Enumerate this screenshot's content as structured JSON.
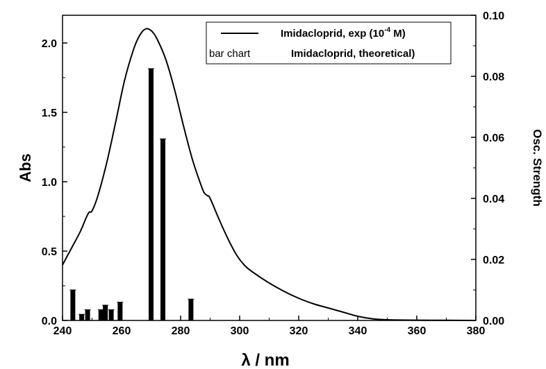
{
  "chart_data": {
    "type": "line",
    "title": "",
    "xlabel": "λ / nm",
    "ylabel": "Abs",
    "y2label": "Osc. Strength",
    "xlim": [
      240,
      380
    ],
    "ylim": [
      0,
      2.2
    ],
    "y2lim": [
      0,
      0.1
    ],
    "x_ticks": [
      "240",
      "260",
      "280",
      "300",
      "320",
      "340",
      "360",
      "380"
    ],
    "y_ticks": [
      "0.0",
      "0.5",
      "1.0",
      "1.5",
      "2.0"
    ],
    "y2_ticks": [
      "0.00",
      "0.02",
      "0.04",
      "0.06",
      "0.08",
      "0.10"
    ],
    "grid": false,
    "legend_position": "top-right",
    "legend": [
      {
        "marker": "line",
        "prefix": "",
        "text": "Imidacloprid, exp (10",
        "sup": "-4",
        "suffix": " M)"
      },
      {
        "marker": "bar",
        "prefix": "bar chart",
        "text": "Imidacloprid, theoretical)",
        "sup": "",
        "suffix": ""
      }
    ],
    "series": [
      {
        "type": "line",
        "name": "Imidacloprid, exp (10-4 M)",
        "axis": "left",
        "x": [
          240,
          243,
          246,
          248,
          249,
          250,
          252,
          255,
          258,
          261,
          264,
          266,
          268,
          270,
          272,
          275,
          278,
          281,
          284,
          287,
          288,
          289,
          290,
          293,
          296,
          299,
          302,
          305,
          310,
          315,
          320,
          325,
          330,
          335,
          340,
          345,
          350,
          360,
          370,
          380
        ],
        "y": [
          0.4,
          0.52,
          0.64,
          0.74,
          0.78,
          0.79,
          0.9,
          1.14,
          1.43,
          1.73,
          1.95,
          2.05,
          2.1,
          2.09,
          2.03,
          1.88,
          1.66,
          1.4,
          1.16,
          0.97,
          0.92,
          0.9,
          0.88,
          0.73,
          0.59,
          0.47,
          0.39,
          0.34,
          0.27,
          0.21,
          0.16,
          0.12,
          0.09,
          0.06,
          0.03,
          0.012,
          0.005,
          0.002,
          0.001,
          0.0
        ]
      },
      {
        "type": "bar",
        "name": "Imidacloprid, theoretical",
        "axis": "right",
        "x": [
          243.5,
          246.5,
          248.5,
          253.0,
          254.5,
          256.5,
          259.5,
          270.0,
          274.0,
          283.5
        ],
        "y": [
          0.01,
          0.002,
          0.0035,
          0.0035,
          0.005,
          0.0035,
          0.006,
          0.0825,
          0.0595,
          0.007
        ]
      }
    ]
  }
}
